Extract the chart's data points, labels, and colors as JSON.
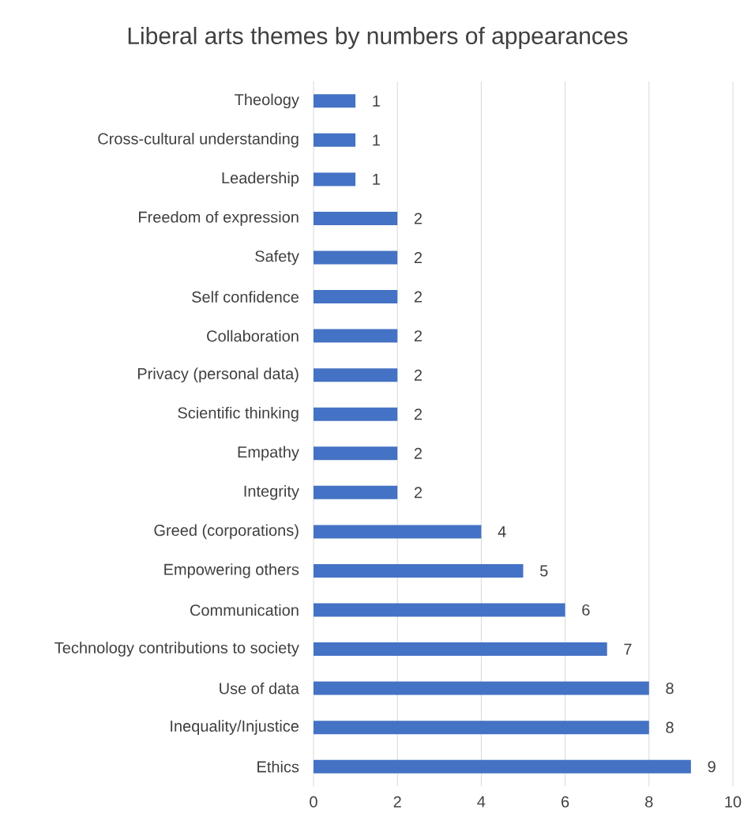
{
  "chart_data": {
    "type": "bar",
    "orientation": "horizontal",
    "title": "Liberal arts themes by numbers of appearances",
    "categories": [
      "Theology",
      "Cross-cultural understanding",
      "Leadership",
      "Freedom of expression",
      "Safety",
      "Self confidence",
      "Collaboration",
      "Privacy (personal data)",
      "Scientific thinking",
      "Empathy",
      "Integrity",
      "Greed (corporations)",
      "Empowering others",
      "Communication",
      "Technology contributions to society",
      "Use of data",
      "Inequality/Injustice",
      "Ethics"
    ],
    "values": [
      1,
      1,
      1,
      2,
      2,
      2,
      2,
      2,
      2,
      2,
      2,
      4,
      5,
      6,
      7,
      8,
      8,
      9
    ],
    "color": "#4472c4",
    "xlim": [
      0,
      10
    ],
    "xticks": [
      0,
      2,
      4,
      6,
      8,
      10
    ],
    "grid": "x",
    "data_labels": true
  }
}
